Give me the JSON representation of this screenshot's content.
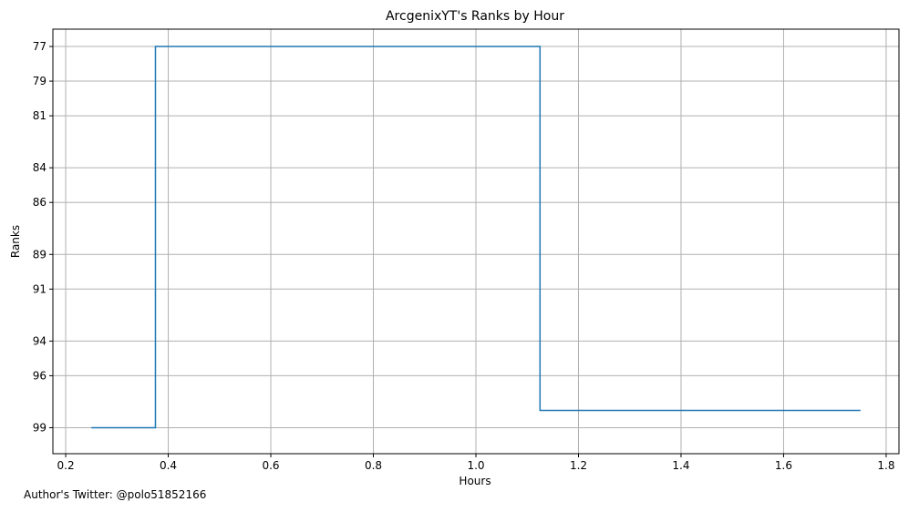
{
  "footer": {
    "author_text": "Author's Twitter: @polo51852166"
  },
  "chart_data": {
    "type": "line",
    "drawstyle": "steps-mid",
    "title": "ArcgenixYT's Ranks by Hour",
    "xlabel": "Hours",
    "ylabel": "Ranks",
    "xlim": [
      0.175,
      1.825
    ],
    "ylim": [
      100.5,
      76
    ],
    "y_inverted": true,
    "grid": true,
    "line_color": "#1f77b4",
    "x_ticks": [
      0.2,
      0.4,
      0.6,
      0.8,
      1.0,
      1.2,
      1.4,
      1.6,
      1.8
    ],
    "x_tick_labels": [
      "0.2",
      "0.4",
      "0.6",
      "0.8",
      "1.0",
      "1.2",
      "1.4",
      "1.6",
      "1.8"
    ],
    "y_ticks": [
      77,
      79,
      81,
      84,
      86,
      89,
      91,
      94,
      96,
      99
    ],
    "y_tick_labels": [
      "77",
      "79",
      "81",
      "84",
      "86",
      "89",
      "91",
      "94",
      "96",
      "99"
    ],
    "x": [
      0.25,
      0.5,
      1.0,
      1.25,
      1.75
    ],
    "y": [
      99,
      77,
      77,
      98,
      98
    ]
  }
}
